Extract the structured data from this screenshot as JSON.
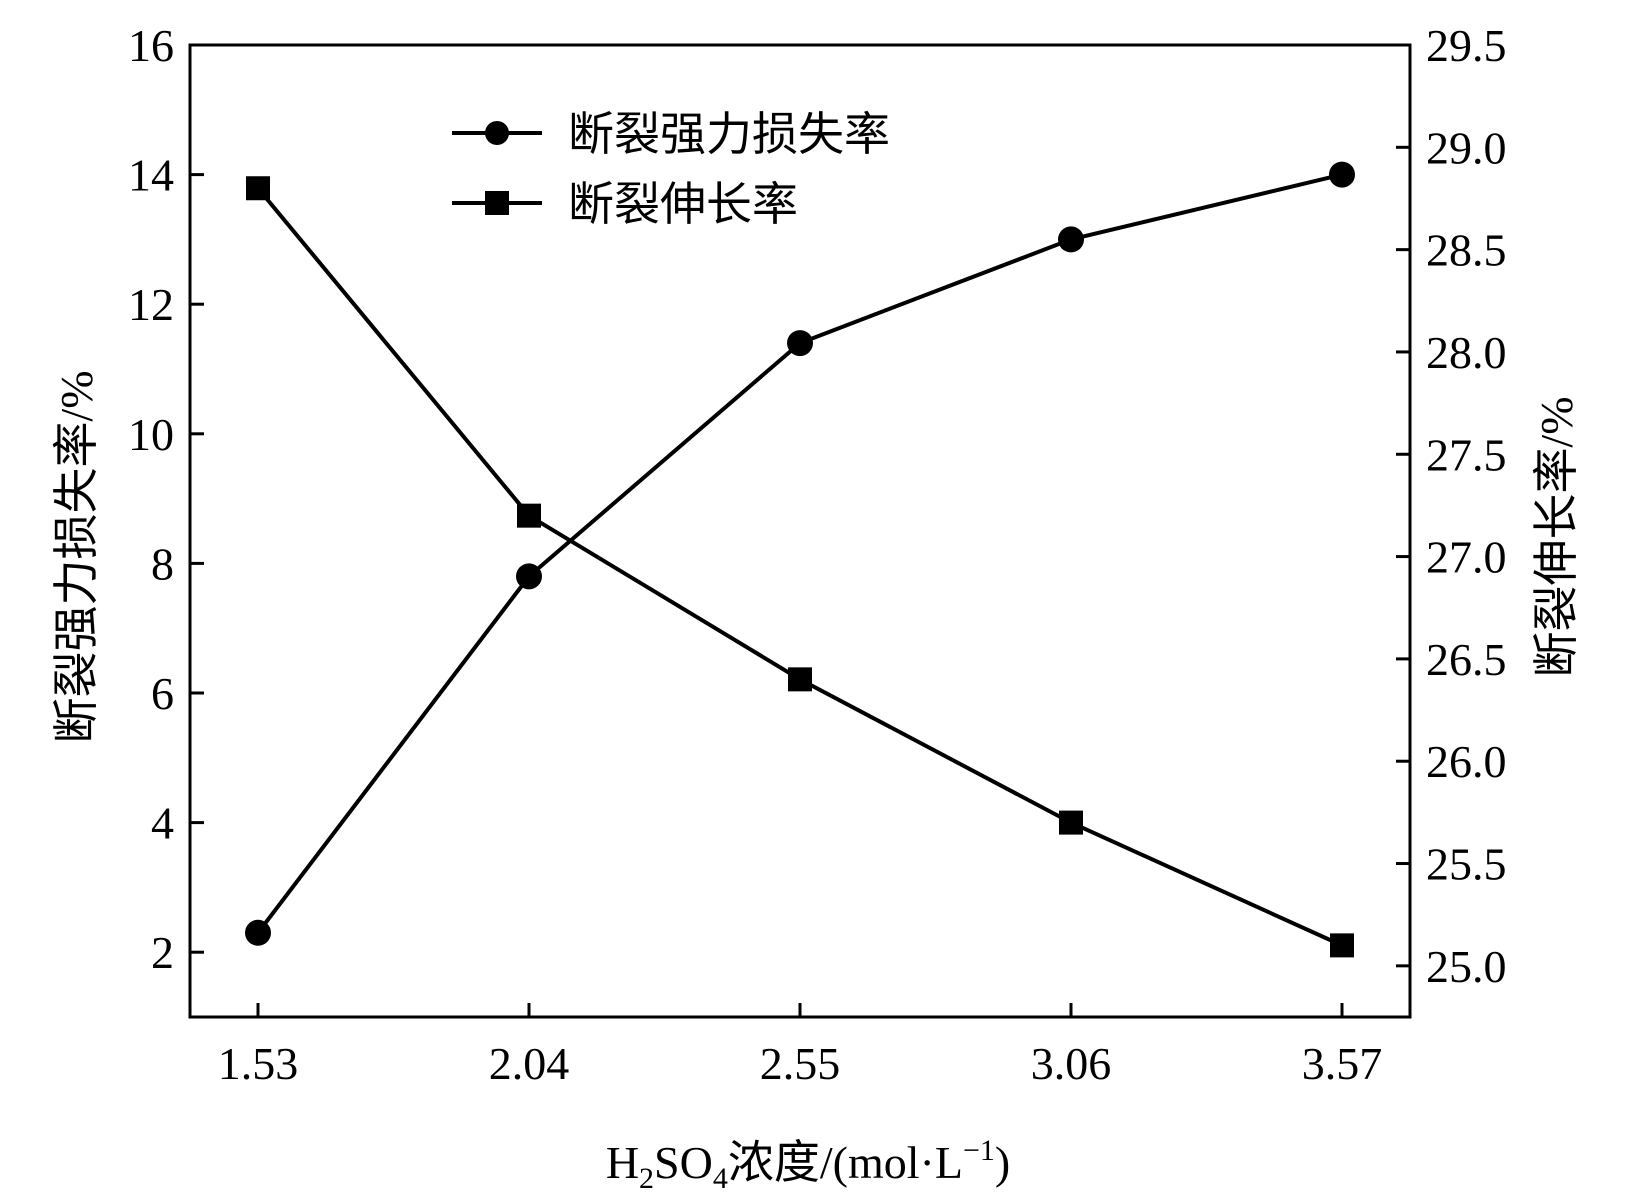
{
  "chart_data": {
    "type": "line",
    "x_values": [
      "1.53",
      "2.04",
      "2.55",
      "3.06",
      "3.57"
    ],
    "xlabel": {
      "prefix": "H",
      "sub1": "2",
      "mid": "SO",
      "sub2": "4",
      "cn": "浓度",
      "unit_open": "/(mol·L",
      "sup": "−1",
      "unit_close": ")"
    },
    "y_left": {
      "label_cn": "断裂强力损失率",
      "label_unit": "/%",
      "ylim": [
        1,
        16
      ],
      "ticks": [
        "2",
        "4",
        "6",
        "8",
        "10",
        "12",
        "14",
        "16"
      ]
    },
    "y_right": {
      "label_cn": "断裂伸长率",
      "label_unit": "/%",
      "ylim": [
        24.75,
        29.5
      ],
      "ticks": [
        "25.0",
        "25.5",
        "26.0",
        "26.5",
        "27.0",
        "27.5",
        "28.0",
        "28.5",
        "29.0",
        "29.5"
      ]
    },
    "series": [
      {
        "name": "断裂强力损失率",
        "axis": "left",
        "marker": "circle",
        "values": [
          2.3,
          7.8,
          11.4,
          13.0,
          14.0
        ]
      },
      {
        "name": "断裂伸长率",
        "axis": "right",
        "marker": "square",
        "values": [
          28.8,
          27.2,
          26.4,
          25.7,
          25.1
        ]
      }
    ],
    "legend_position": "top-center",
    "grid": false,
    "colors": {
      "line": "#000000",
      "background": "#ffffff"
    }
  }
}
